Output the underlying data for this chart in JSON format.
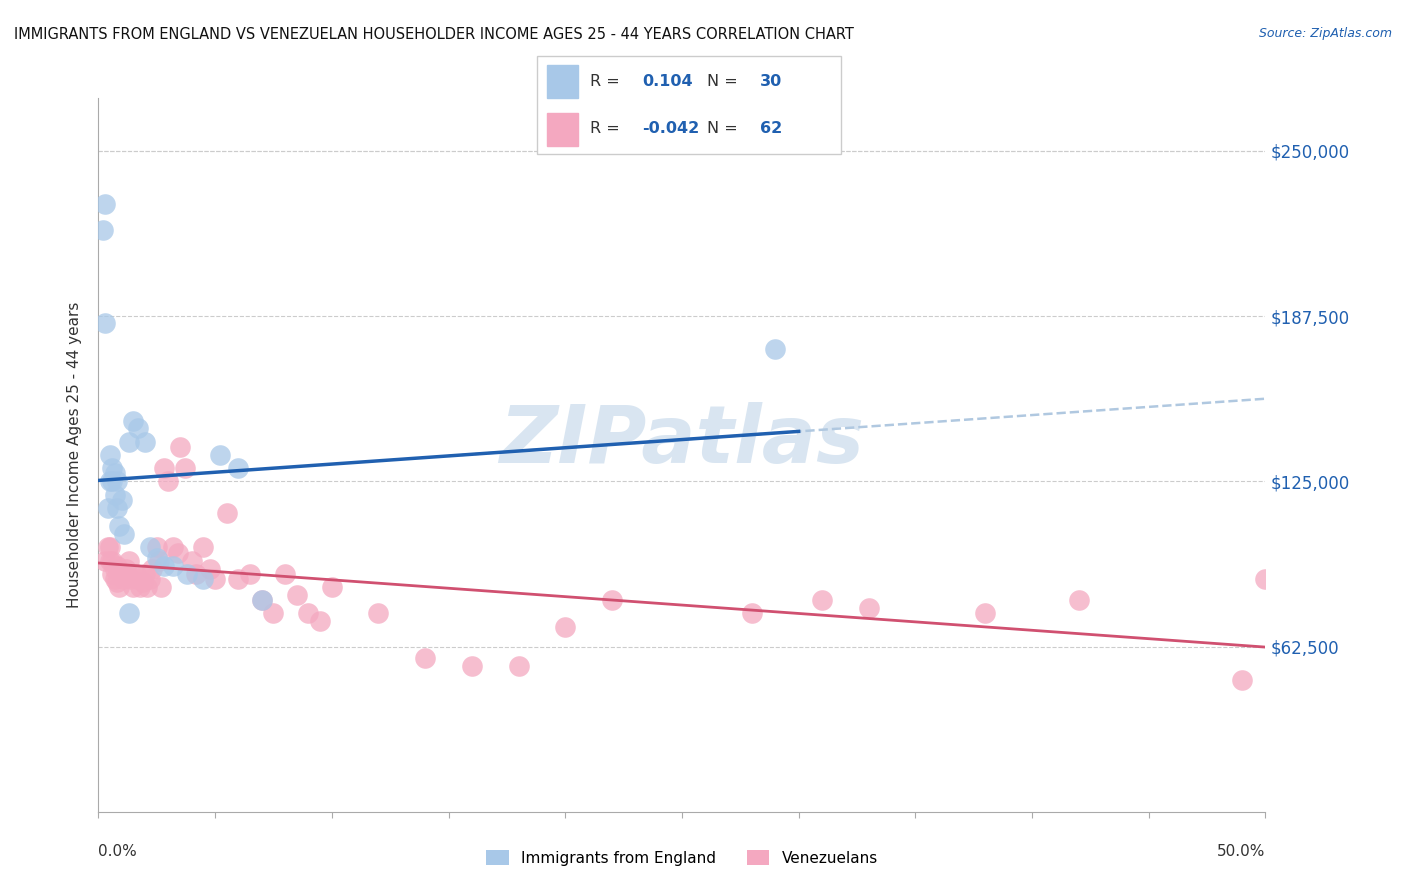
{
  "title": "IMMIGRANTS FROM ENGLAND VS VENEZUELAN HOUSEHOLDER INCOME AGES 25 - 44 YEARS CORRELATION CHART",
  "source": "Source: ZipAtlas.com",
  "ylabel": "Householder Income Ages 25 - 44 years",
  "ytick_values": [
    62500,
    125000,
    187500,
    250000
  ],
  "ytick_labels": [
    "$62,500",
    "$125,000",
    "$187,500",
    "$250,000"
  ],
  "ylim": [
    0,
    270000
  ],
  "xlim": [
    0.0,
    0.5
  ],
  "england_color": "#a8c8e8",
  "venezuela_color": "#f4a8c0",
  "england_line_color": "#2060b0",
  "venezuela_line_color": "#d05070",
  "dash_line_color": "#b0c8e0",
  "watermark": "ZIPatlas",
  "england_x": [
    0.003,
    0.004,
    0.005,
    0.005,
    0.006,
    0.006,
    0.007,
    0.007,
    0.008,
    0.008,
    0.009,
    0.01,
    0.011,
    0.013,
    0.015,
    0.017,
    0.02,
    0.022,
    0.025,
    0.028,
    0.032,
    0.038,
    0.045,
    0.052,
    0.06,
    0.07,
    0.002,
    0.003,
    0.013,
    0.29
  ],
  "england_y": [
    230000,
    115000,
    125000,
    135000,
    125000,
    130000,
    120000,
    128000,
    115000,
    125000,
    108000,
    118000,
    105000,
    140000,
    148000,
    145000,
    140000,
    100000,
    96000,
    93000,
    93000,
    90000,
    88000,
    135000,
    130000,
    80000,
    220000,
    185000,
    75000,
    175000
  ],
  "venezuela_x": [
    0.003,
    0.004,
    0.005,
    0.005,
    0.006,
    0.006,
    0.007,
    0.007,
    0.008,
    0.008,
    0.009,
    0.01,
    0.011,
    0.012,
    0.013,
    0.014,
    0.015,
    0.016,
    0.017,
    0.018,
    0.019,
    0.02,
    0.021,
    0.022,
    0.023,
    0.025,
    0.026,
    0.027,
    0.028,
    0.03,
    0.032,
    0.034,
    0.035,
    0.037,
    0.04,
    0.042,
    0.045,
    0.048,
    0.05,
    0.055,
    0.06,
    0.065,
    0.07,
    0.075,
    0.08,
    0.085,
    0.09,
    0.095,
    0.1,
    0.12,
    0.14,
    0.16,
    0.18,
    0.2,
    0.22,
    0.28,
    0.31,
    0.33,
    0.38,
    0.42,
    0.49,
    0.5
  ],
  "venezuela_y": [
    95000,
    100000,
    95000,
    100000,
    90000,
    95000,
    88000,
    92000,
    87000,
    93000,
    85000,
    90000,
    88000,
    92000,
    95000,
    88000,
    85000,
    90000,
    88000,
    85000,
    87000,
    90000,
    85000,
    88000,
    92000,
    100000,
    95000,
    85000,
    130000,
    125000,
    100000,
    98000,
    138000,
    130000,
    95000,
    90000,
    100000,
    92000,
    88000,
    113000,
    88000,
    90000,
    80000,
    75000,
    90000,
    82000,
    75000,
    72000,
    85000,
    75000,
    58000,
    55000,
    55000,
    70000,
    80000,
    75000,
    80000,
    77000,
    75000,
    80000,
    50000,
    88000
  ],
  "legend_r1": "R =   0.104   N = 30",
  "legend_r2": "R = -0.042   N = 62",
  "legend_val1": "0.104",
  "legend_val2": "-0.042",
  "legend_n1": "30",
  "legend_n2": "62",
  "legend_blue_color": "#2060b0"
}
